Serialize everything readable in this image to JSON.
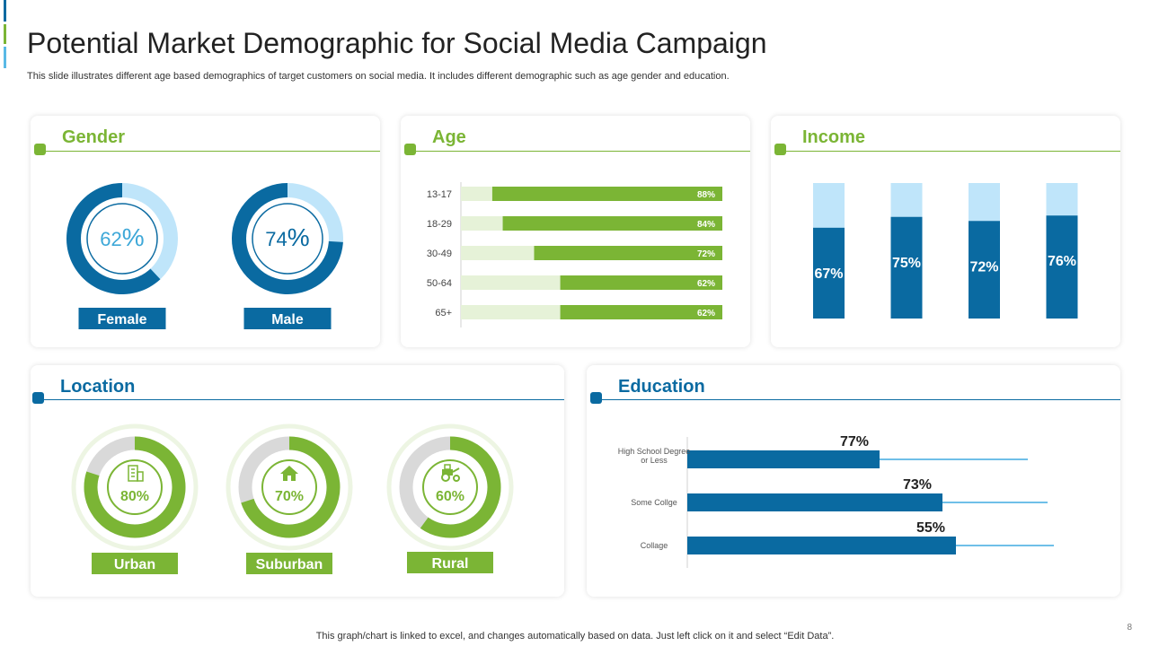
{
  "slide": {
    "title": "Potential Market Demographic for Social Media Campaign",
    "subtitle": "This slide illustrates different age based demographics of target customers on social media. It includes different demographic such as age gender and education.",
    "footer": "This graph/chart is linked to excel,  and changes automatically based on data. Just left click on it and select “Edit Data”.",
    "page_number": "8"
  },
  "colors": {
    "green": "#7bb535",
    "green_light": "#e6f2d8",
    "blue": "#0a6aa1",
    "blue_light": "#bfe5fa",
    "gray": "#d9d9d9"
  },
  "cards": {
    "gender": "Gender",
    "age": "Age",
    "income": "Income",
    "location": "Location",
    "education": "Education"
  },
  "chart_data": [
    {
      "id": "gender",
      "type": "pie",
      "title": "Gender",
      "items": [
        {
          "label": "Female",
          "value": 62,
          "value_text": "62",
          "unit": "%"
        },
        {
          "label": "Male",
          "value": 74,
          "value_text": "74",
          "unit": "%"
        }
      ]
    },
    {
      "id": "age",
      "type": "bar",
      "orientation": "horizontal",
      "title": "Age",
      "categories": [
        "13-17",
        "18-29",
        "30-49",
        "50-64",
        "65+"
      ],
      "values": [
        88,
        84,
        72,
        62,
        62
      ],
      "labels": [
        "88%",
        "84%",
        "72%",
        "62%",
        "62%"
      ],
      "xlim": [
        0,
        100
      ]
    },
    {
      "id": "income",
      "type": "bar",
      "stacked": true,
      "title": "Income",
      "values": [
        67,
        75,
        72,
        76
      ],
      "labels": [
        "67%",
        "75%",
        "72%",
        "76%"
      ],
      "ylim": [
        0,
        100
      ]
    },
    {
      "id": "location",
      "type": "pie",
      "title": "Location",
      "items": [
        {
          "label": "Urban",
          "value": 80,
          "value_text": "80%",
          "icon": "building-icon"
        },
        {
          "label": "Suburban",
          "value": 70,
          "value_text": "70%",
          "icon": "house-icon"
        },
        {
          "label": "Rural",
          "value": 60,
          "value_text": "60%",
          "icon": "tractor-icon"
        }
      ]
    },
    {
      "id": "education",
      "type": "bar",
      "orientation": "horizontal",
      "title": "Education",
      "categories": [
        [
          "High School Degree",
          "or Less"
        ],
        [
          "Some Collge"
        ],
        [
          "Collage"
        ]
      ],
      "values": [
        77,
        73,
        55
      ],
      "labels": [
        "77%",
        "73%",
        "55%"
      ]
    }
  ]
}
